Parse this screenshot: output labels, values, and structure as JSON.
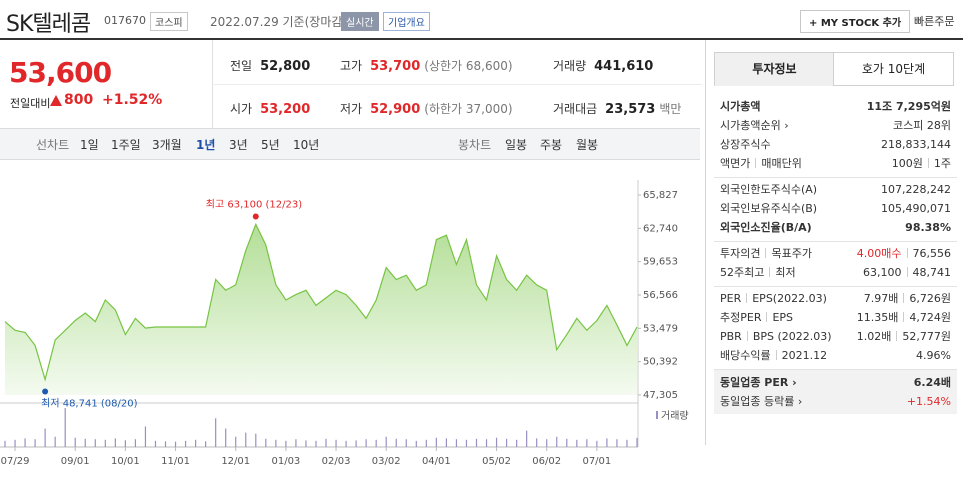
{
  "header": {
    "name": "SK텔레콤",
    "code": "017670",
    "market": "코스피",
    "date": "2022.07.29 기준(장마감)",
    "realtime": "실시간",
    "company": "기업개요",
    "mystock": "+ MY STOCK 추가",
    "order": "빠른주문"
  },
  "price": {
    "current": "53,600",
    "change_label": "전일대비",
    "change": "800",
    "change_pct": "+1.52%"
  },
  "quote": [
    [
      {
        "label": "전일",
        "value": "52,800"
      },
      {
        "label": "고가",
        "value": "53,700",
        "note": "(상한가 68,600)",
        "color": "#e0282a"
      },
      {
        "label": "거래량",
        "value": "441,610"
      }
    ],
    [
      {
        "label": "시가",
        "value": "53,200",
        "color": "#e0282a"
      },
      {
        "label": "저가",
        "value": "52,900",
        "note": "(하한가 37,000)",
        "color": "#e0282a"
      },
      {
        "label": "거래대금",
        "value": "23,573",
        "note": "백만"
      }
    ]
  ],
  "tabs": {
    "line_label": "선차트",
    "line_periods": [
      "1일",
      "1주일",
      "3개월",
      "1년",
      "3년",
      "5년",
      "10년"
    ],
    "active_index": 3,
    "candle_label": "봉차트",
    "candle_periods": [
      "일봉",
      "주봉",
      "월봉"
    ]
  },
  "chart_data": {
    "type": "line",
    "categories": [
      null,
      "07/29",
      null,
      null,
      null,
      null,
      null,
      "09/01",
      null,
      null,
      null,
      null,
      "10/01",
      null,
      null,
      null,
      null,
      "11/01",
      null,
      null,
      null,
      null,
      null,
      "12/01",
      null,
      null,
      null,
      null,
      "01/03",
      null,
      null,
      null,
      null,
      "02/03",
      null,
      null,
      null,
      null,
      "03/02",
      null,
      null,
      null,
      null,
      "04/01",
      null,
      null,
      null,
      null,
      null,
      "05/02",
      null,
      null,
      null,
      null,
      "06/02",
      null,
      null,
      null,
      null,
      "07/01",
      null,
      null,
      null,
      null
    ],
    "values": [
      54100,
      53300,
      53100,
      51900,
      48741,
      52400,
      53300,
      54200,
      54900,
      54100,
      56100,
      55200,
      52900,
      54400,
      53500,
      53600,
      53600,
      53600,
      53600,
      53600,
      53600,
      58000,
      57000,
      57500,
      60700,
      63100,
      61200,
      57500,
      56100,
      56600,
      57000,
      55600,
      56300,
      57000,
      56600,
      55600,
      54400,
      56100,
      59100,
      58000,
      58400,
      57000,
      57500,
      61700,
      62100,
      59400,
      61700,
      57500,
      56100,
      60200,
      58000,
      57000,
      58400,
      57500,
      57000,
      51500,
      52900,
      54400,
      53300,
      54200,
      55600,
      53800,
      51900,
      53600
    ],
    "color": "#76c442",
    "ylim": [
      47305,
      65827
    ],
    "yticks": [
      {
        "value": 65827,
        "label": "65,827"
      },
      {
        "value": 62740,
        "label": "62,740"
      },
      {
        "value": 59653,
        "label": "59,653"
      },
      {
        "value": 56566,
        "label": "56,566"
      },
      {
        "value": 53479,
        "label": "53,479"
      },
      {
        "value": 50392,
        "label": "50,392"
      },
      {
        "value": 47305,
        "label": "47,305"
      }
    ],
    "grid": false,
    "annotations": {
      "high": "최고 63,100 (12/23)",
      "low": "최저 48,741 (08/20)",
      "high_color": "#e0282a",
      "low_color": "#1e5bb0"
    },
    "volume": {
      "name": "거래량",
      "color": "#9a8fc4",
      "values": [
        300000,
        350000,
        420000,
        380000,
        900000,
        500000,
        1900000,
        450000,
        400000,
        380000,
        350000,
        420000,
        330000,
        380000,
        1000000,
        300000,
        280000,
        260000,
        300000,
        350000,
        280000,
        1400000,
        900000,
        500000,
        700000,
        650000,
        400000,
        350000,
        300000,
        380000,
        320000,
        300000,
        400000,
        350000,
        300000,
        320000,
        380000,
        350000,
        500000,
        400000,
        380000,
        300000,
        350000,
        450000,
        420000,
        380000,
        350000,
        400000,
        380000,
        450000,
        400000,
        350000,
        800000,
        420000,
        380000,
        500000,
        400000,
        350000,
        380000,
        300000,
        420000,
        380000,
        350000,
        441610
      ]
    }
  },
  "info": {
    "tabs": [
      "투자정보",
      "호가 10단계"
    ],
    "active_index": 0,
    "sections": [
      [
        {
          "labels": [
            "시가총액"
          ],
          "values": [
            "11조 7,295억원"
          ],
          "bold": true
        },
        {
          "labels": [
            "시가총액순위 ›"
          ],
          "values": [
            "코스피 28위"
          ]
        },
        {
          "labels": [
            "상장주식수"
          ],
          "values": [
            "218,833,144"
          ]
        },
        {
          "labels": [
            "액면가",
            "매매단위"
          ],
          "values": [
            "100원",
            "1주"
          ]
        }
      ],
      [
        {
          "labels": [
            "외국인한도주식수(A)"
          ],
          "values": [
            "107,228,242"
          ]
        },
        {
          "labels": [
            "외국인보유주식수(B)"
          ],
          "values": [
            "105,490,071"
          ]
        },
        {
          "labels": [
            "외국인소진율(B/A)"
          ],
          "values": [
            "98.38%"
          ],
          "bold": true
        }
      ],
      [
        {
          "labels": [
            "투자의견",
            "목표주가"
          ],
          "values": [
            "4.00매수",
            "76,556"
          ],
          "color": "#e0282a"
        },
        {
          "labels": [
            "52주최고",
            "최저"
          ],
          "values": [
            "63,100",
            "48,741"
          ]
        }
      ],
      [
        {
          "labels": [
            "PER",
            "EPS(2022.03)"
          ],
          "values": [
            "7.97배",
            "6,726원"
          ]
        },
        {
          "labels": [
            "추정PER",
            "EPS"
          ],
          "values": [
            "11.35배",
            "4,724원"
          ]
        },
        {
          "labels": [
            "PBR",
            "BPS (2022.03)"
          ],
          "values": [
            "1.02배",
            "52,777원"
          ]
        },
        {
          "labels": [
            "배당수익률",
            "2021.12"
          ],
          "values": [
            "4.96%"
          ]
        }
      ],
      [
        {
          "labels": [
            "동일업종 PER ›"
          ],
          "values": [
            "6.24배"
          ],
          "bold": true
        },
        {
          "labels": [
            "동일업종 등락률 ›"
          ],
          "values": [
            "+1.54%"
          ],
          "color": "#e0282a"
        }
      ]
    ]
  }
}
